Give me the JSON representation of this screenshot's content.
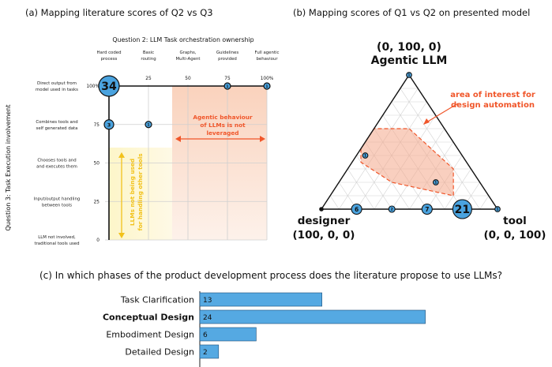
{
  "panel_a": {
    "title": "(a) Mapping literature scores of Q2 vs Q3",
    "header": "Question 2: LLM Task orchestration ownership",
    "ylabel": "Question 3: Task Execution involvement",
    "x_categories": [
      {
        "lines": [
          "Hard coded",
          "process"
        ],
        "tick": "0"
      },
      {
        "lines": [
          "Basic",
          "routing"
        ],
        "tick": "25"
      },
      {
        "lines": [
          "Graphs,",
          "Multi-Agent"
        ],
        "tick": "50"
      },
      {
        "lines": [
          "Guidelines",
          "provided"
        ],
        "tick": "75"
      },
      {
        "lines": [
          "Full agentic",
          "behaviour"
        ],
        "tick": "100%"
      }
    ],
    "y_categories": [
      {
        "lines": [
          "Direct output from",
          "model used in tasks"
        ],
        "tick": "100%"
      },
      {
        "lines": [
          "Combines tools and",
          "self generated data"
        ],
        "tick": "75"
      },
      {
        "lines": [
          "Chooses tools and",
          "and executes them"
        ],
        "tick": "50"
      },
      {
        "lines": [
          "Input/output handling",
          "between tools"
        ],
        "tick": "25"
      },
      {
        "lines": [
          "LLM not involved,",
          "traditional tools used"
        ],
        "tick": "0"
      }
    ],
    "annotation_orange": [
      "Agentic behaviour",
      "of LLMs is not",
      "leveraged"
    ],
    "annotation_yellow": [
      "LLMs not being used",
      "for handling other tools"
    ],
    "colors": {
      "bubble": "#4aa3df",
      "orange": "#f0562a",
      "yellow": "#f2c21b"
    }
  },
  "panel_b": {
    "title": "(b) Mapping scores of Q1 vs Q2 on presented model",
    "top_label": "(0, 100, 0)",
    "top_name": "Agentic LLM",
    "left_name": "designer",
    "left_coord": "(100, 0, 0)",
    "right_name": "tool",
    "right_coord": "(0, 0, 100)",
    "annotation": [
      "area of interest for",
      "design automation"
    ]
  },
  "panel_c": {
    "title": "(c) In which phases of the product development process does the literature propose to use LLMs?"
  },
  "chart_data": [
    {
      "type": "scatter",
      "title": "(a) Mapping literature scores of Q2 vs Q3",
      "xlabel": "Question 2: LLM Task orchestration ownership",
      "ylabel": "Question 3: Task Execution involvement",
      "xlim": [
        0,
        100
      ],
      "ylim": [
        0,
        100
      ],
      "points": [
        {
          "x": 0,
          "y": 100,
          "count": 34
        },
        {
          "x": 75,
          "y": 100,
          "count": 1
        },
        {
          "x": 100,
          "y": 100,
          "count": 1
        },
        {
          "x": 0,
          "y": 75,
          "count": 3
        },
        {
          "x": 25,
          "y": 75,
          "count": 1
        }
      ]
    },
    {
      "type": "scatter",
      "title": "(b) Mapping scores of Q1 vs Q2 on presented model",
      "axes": [
        "designer",
        "Agentic LLM",
        "tool"
      ],
      "points": [
        {
          "designer": 0,
          "agentic": 100,
          "tool": 0,
          "count": 1
        },
        {
          "designer": 55,
          "agentic": 40,
          "tool": 5,
          "count": 1
        },
        {
          "designer": 25,
          "agentic": 20,
          "tool": 55,
          "count": 1
        },
        {
          "designer": 80,
          "agentic": 0,
          "tool": 20,
          "count": 6
        },
        {
          "designer": 60,
          "agentic": 0,
          "tool": 40,
          "count": 2
        },
        {
          "designer": 40,
          "agentic": 0,
          "tool": 60,
          "count": 7
        },
        {
          "designer": 20,
          "agentic": 0,
          "tool": 80,
          "count": 21
        },
        {
          "designer": 0,
          "agentic": 0,
          "tool": 100,
          "count": 1
        }
      ]
    },
    {
      "type": "bar",
      "orientation": "horizontal",
      "title": "(c) In which phases of the product development process does the literature propose to use LLMs?",
      "categories": [
        "Task Clarification",
        "Conceptual Design",
        "Embodiment Design",
        "Detailed Design"
      ],
      "values": [
        13,
        24,
        6,
        2
      ],
      "bold": [
        false,
        true,
        false,
        false
      ],
      "color": "#55a9e2"
    }
  ]
}
